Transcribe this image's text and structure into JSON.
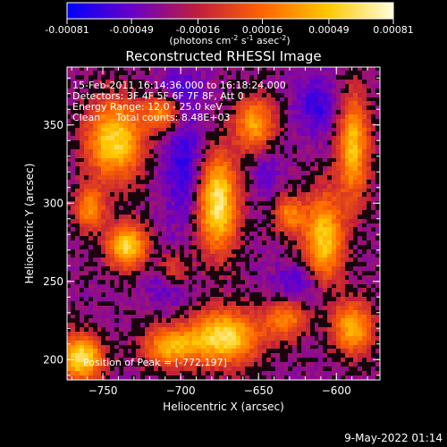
{
  "chart_data": {
    "type": "heatmap",
    "title": "Reconstructed RHESSI Image",
    "colorbar": {
      "ticks": [
        "-0.00081",
        "-0.00049",
        "-0.00016",
        "0.00016",
        "0.00049",
        "0.00081"
      ],
      "unit_prefix": "(photons cm",
      "unit_exp1": "-2",
      "unit_mid": " s",
      "unit_exp2": "-1",
      "unit_mid2": " asec",
      "unit_exp3": "-2",
      "unit_suffix": ")",
      "range": [
        -0.00081,
        0.00081
      ],
      "colormap": [
        "#0000ff",
        "#6a00c8",
        "#c01e3c",
        "#ff6400",
        "#ffc800",
        "#ffffdc"
      ]
    },
    "annotations": [
      "15-Feb-2011 16:14:36.000 to 16:18:24.000",
      "Detectors: 3F 4F 5F 6F 7F 8F, Att 0",
      "Energy Range: 12.0 - 25.0 keV",
      "Clean     Total counts: 8.48E+03"
    ],
    "peak_label": "Position of Peak = [-772,197]",
    "xlabel": "Heliocentric X (arcsec)",
    "ylabel": "Heliocentric Y (arcsec)",
    "xlim": [
      -773,
      -572
    ],
    "ylim": [
      187,
      387
    ],
    "xticks": [
      {
        "value": -750,
        "label": "−750"
      },
      {
        "value": -700,
        "label": "−700"
      },
      {
        "value": -650,
        "label": "−650"
      },
      {
        "value": -600,
        "label": "−600"
      }
    ],
    "yticks": [
      {
        "value": 200,
        "label": "200"
      },
      {
        "value": 250,
        "label": "250"
      },
      {
        "value": 300,
        "label": "300"
      },
      {
        "value": 350,
        "label": "350"
      }
    ],
    "peak": {
      "x": -772,
      "y": 197
    },
    "sources": [
      {
        "x": -676,
        "y": 300,
        "sx": 9,
        "sy": 22,
        "a": 1.0
      },
      {
        "x": -672,
        "y": 214,
        "sx": 16,
        "sy": 12,
        "a": 0.95
      },
      {
        "x": -742,
        "y": 340,
        "sx": 13,
        "sy": 18,
        "a": 0.9
      },
      {
        "x": -734,
        "y": 272,
        "sx": 9,
        "sy": 10,
        "a": 0.9
      },
      {
        "x": -764,
        "y": 201,
        "sx": 10,
        "sy": 10,
        "a": 0.95
      },
      {
        "x": -608,
        "y": 275,
        "sx": 9,
        "sy": 22,
        "a": 0.85
      },
      {
        "x": -589,
        "y": 336,
        "sx": 7,
        "sy": 24,
        "a": 0.8
      },
      {
        "x": -589,
        "y": 220,
        "sx": 9,
        "sy": 12,
        "a": 0.75
      },
      {
        "x": -652,
        "y": 350,
        "sx": 9,
        "sy": 12,
        "a": 0.7
      },
      {
        "x": -711,
        "y": 358,
        "sx": 8,
        "sy": 8,
        "a": 0.65
      },
      {
        "x": -705,
        "y": 258,
        "sx": 8,
        "sy": 8,
        "a": 0.55
      },
      {
        "x": -758,
        "y": 296,
        "sx": 7,
        "sy": 10,
        "a": 0.6
      },
      {
        "x": -707,
        "y": 208,
        "sx": 12,
        "sy": 9,
        "a": 0.7
      },
      {
        "x": -632,
        "y": 226,
        "sx": 9,
        "sy": 9,
        "a": 0.6
      },
      {
        "x": -630,
        "y": 292,
        "sx": 7,
        "sy": 9,
        "a": 0.55
      }
    ],
    "troughs": [
      {
        "x": -697,
        "y": 322,
        "sx": 10,
        "sy": 24,
        "a": 0.95
      },
      {
        "x": -708,
        "y": 254,
        "sx": 10,
        "sy": 12,
        "a": 0.9
      },
      {
        "x": -620,
        "y": 248,
        "sx": 13,
        "sy": 10,
        "a": 0.9
      },
      {
        "x": -612,
        "y": 362,
        "sx": 10,
        "sy": 14,
        "a": 0.8
      },
      {
        "x": -700,
        "y": 372,
        "sx": 10,
        "sy": 10,
        "a": 0.7
      },
      {
        "x": -645,
        "y": 320,
        "sx": 7,
        "sy": 12,
        "a": 0.5
      }
    ]
  },
  "timestamp": "9-May-2022 01:14"
}
